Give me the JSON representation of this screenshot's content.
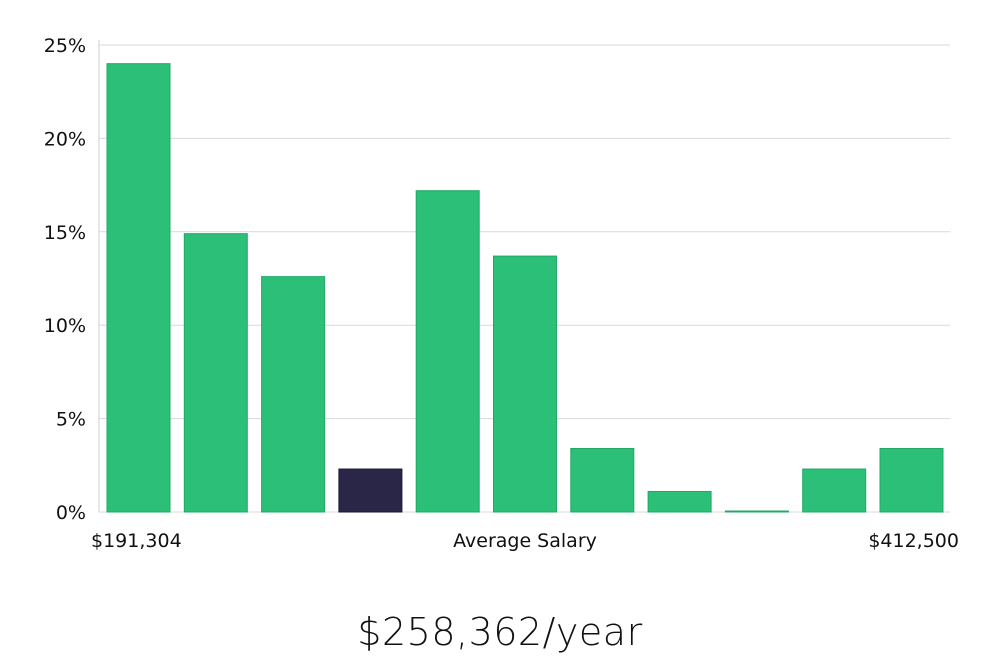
{
  "chart_data": {
    "type": "bar",
    "title": "",
    "xlabel": "Average Salary",
    "ylabel": "",
    "x_min_label": "$191,304",
    "x_max_label": "$412,500",
    "ylim": [
      0,
      25
    ],
    "yticks": [
      0,
      5,
      10,
      15,
      20,
      25
    ],
    "ytick_labels": [
      "0%",
      "5%",
      "10%",
      "15%",
      "20%",
      "25%"
    ],
    "grid": true,
    "values": [
      24.0,
      14.9,
      12.6,
      2.3,
      17.2,
      13.7,
      3.4,
      1.1,
      0.05,
      2.3,
      3.4
    ],
    "highlight_index": 3,
    "colors": {
      "bar": "#2bbf77",
      "bar_edge": "#21a866",
      "highlight": "#2a2648"
    }
  },
  "salary_text": "$258,362/year"
}
